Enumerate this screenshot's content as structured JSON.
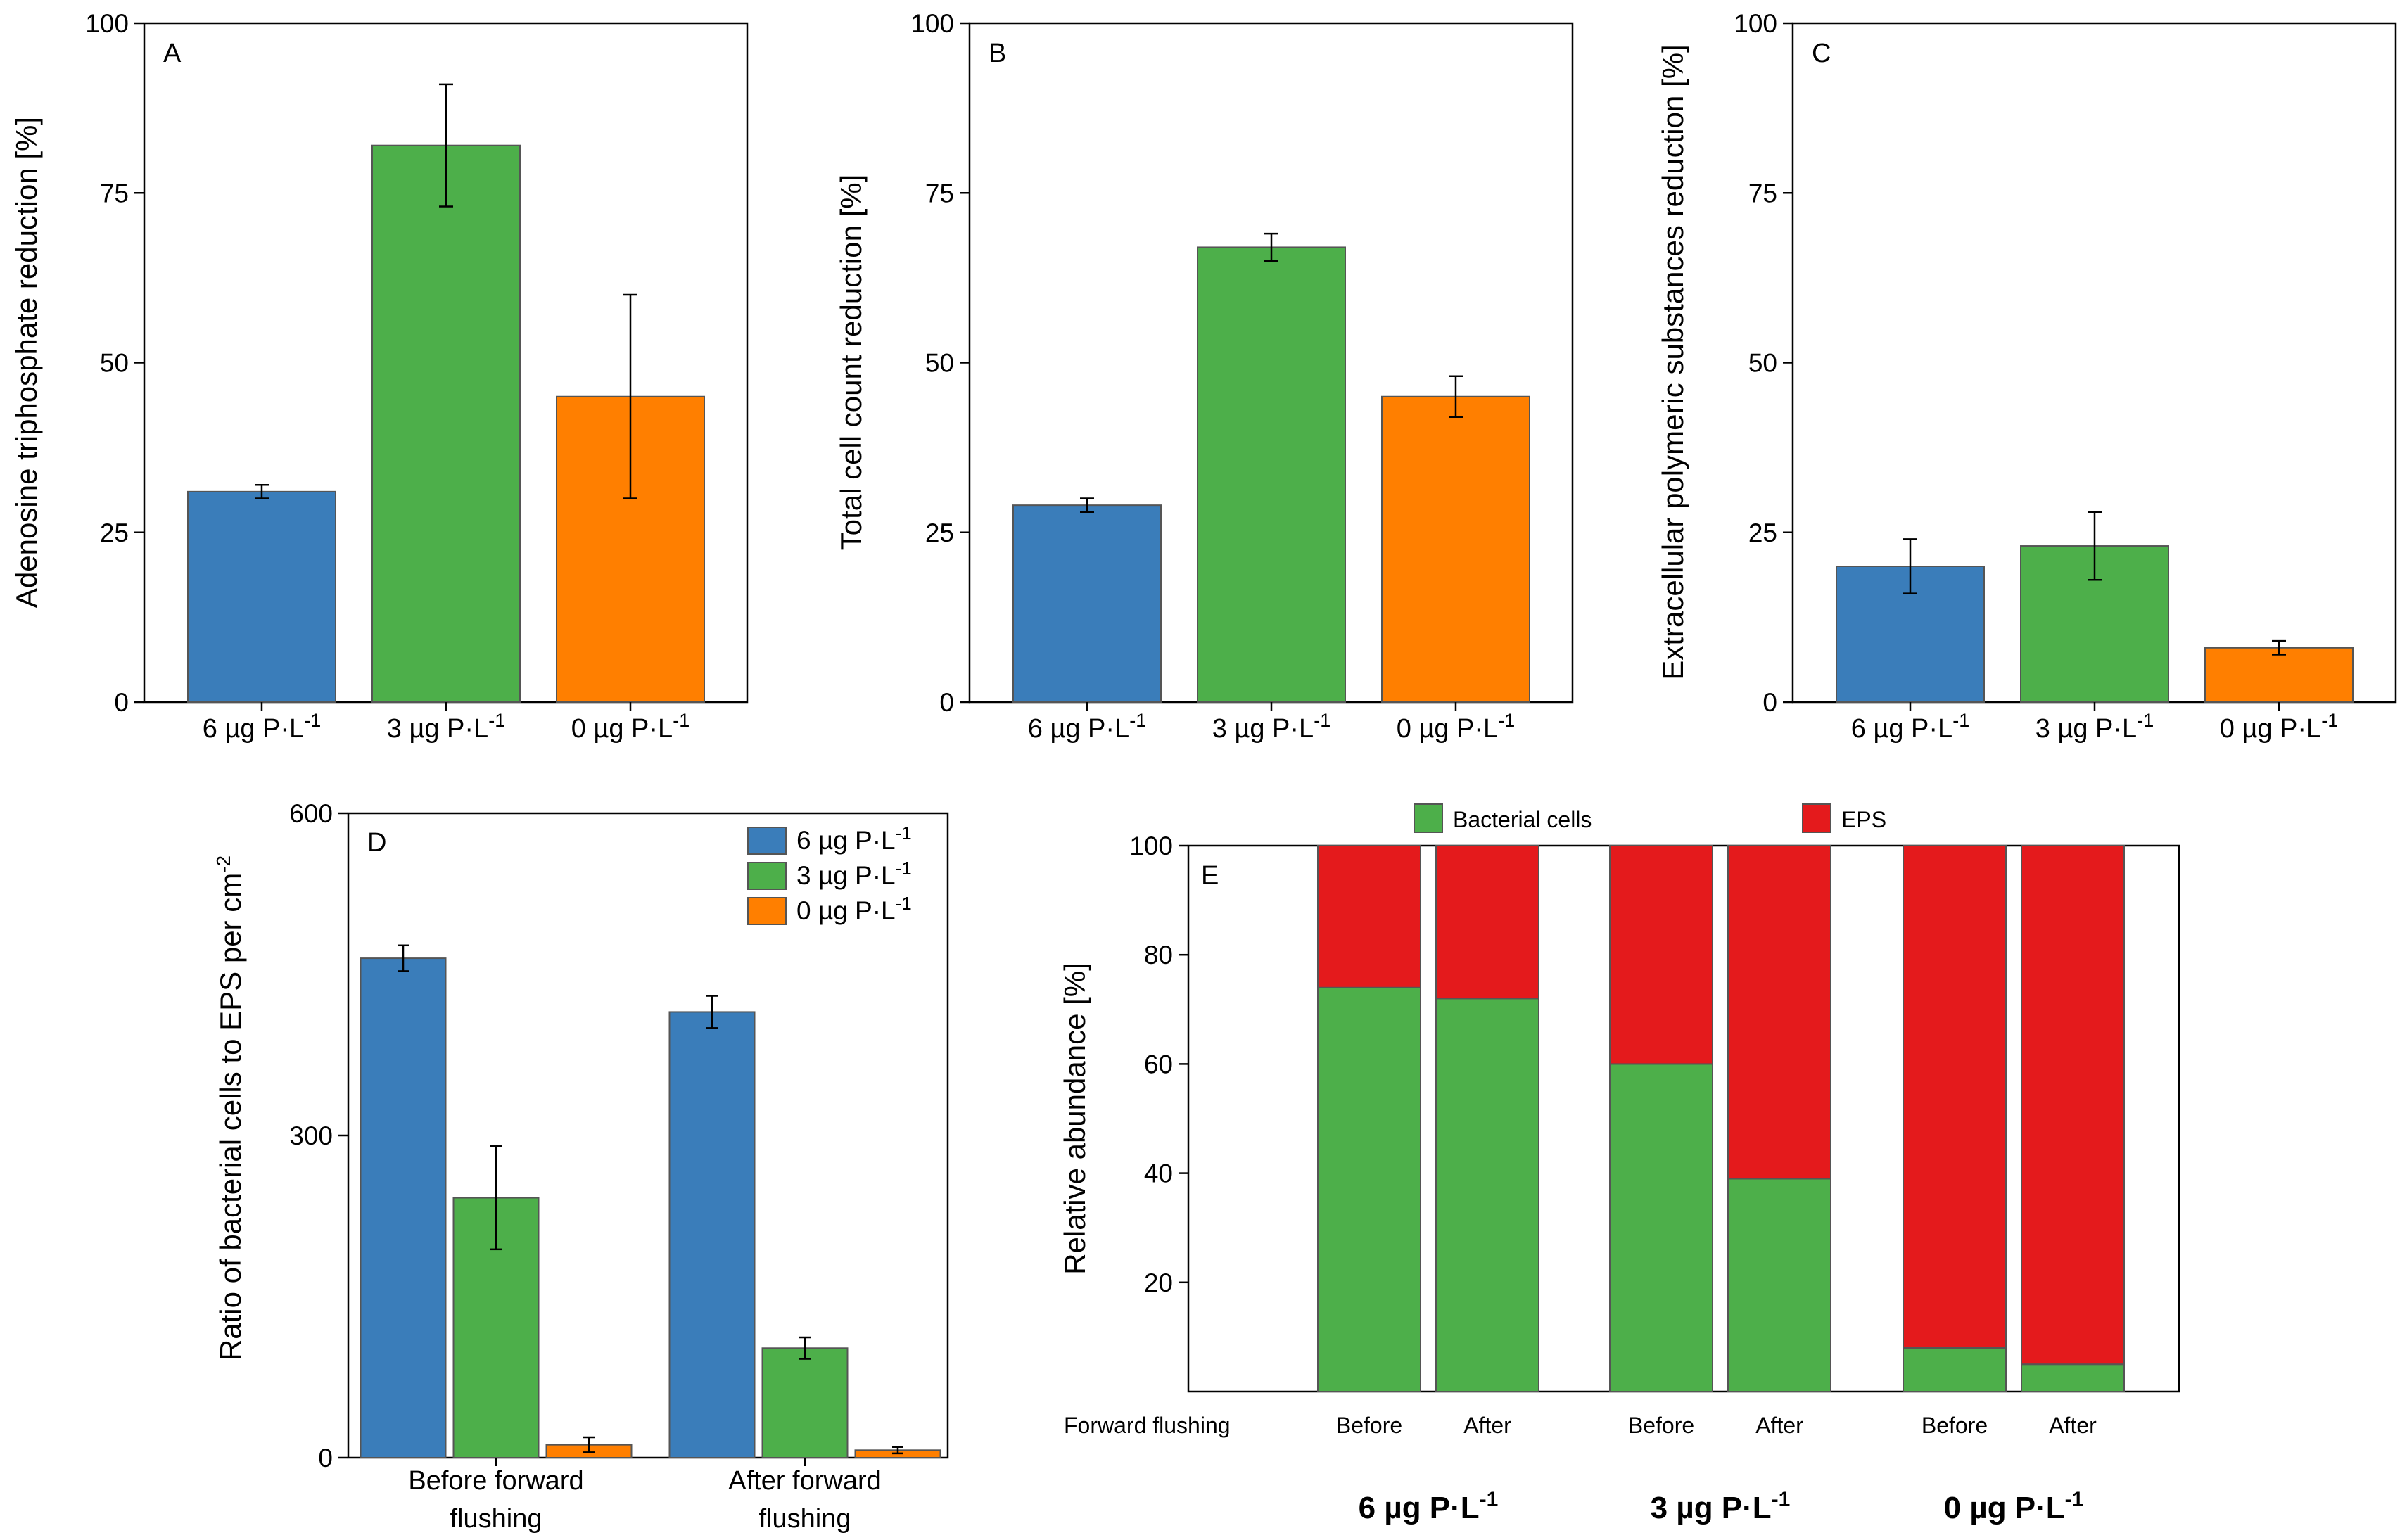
{
  "colors": {
    "blue": "#3a7dba",
    "green": "#4daf4a",
    "orange": "#ff7f00",
    "red": "#e41a1c",
    "bar_edge": "#555555"
  },
  "chart_data": [
    {
      "type": "bar",
      "panel": "A",
      "ylabel": "Adenosine triphosphate reduction [%]",
      "ylim": [
        0,
        100
      ],
      "yticks": [
        "0",
        "25",
        "50",
        "75",
        "100"
      ],
      "ytick_values": [
        0,
        25,
        50,
        75,
        100
      ],
      "categories": [
        {
          "base": "6 µg P·L",
          "sup": "-1"
        },
        {
          "base": "3 µg P·L",
          "sup": "-1"
        },
        {
          "base": "0 µg P·L",
          "sup": "-1"
        }
      ],
      "values": [
        31,
        82,
        45
      ],
      "errors": [
        1,
        9,
        15
      ],
      "bar_colors": [
        "blue",
        "green",
        "orange"
      ]
    },
    {
      "type": "bar",
      "panel": "B",
      "ylabel": "Total cell count reduction [%]",
      "ylim": [
        0,
        100
      ],
      "yticks": [
        "0",
        "25",
        "50",
        "75",
        "100"
      ],
      "ytick_values": [
        0,
        25,
        50,
        75,
        100
      ],
      "categories": [
        {
          "base": "6 µg P·L",
          "sup": "-1"
        },
        {
          "base": "3 µg P·L",
          "sup": "-1"
        },
        {
          "base": "0 µg P·L",
          "sup": "-1"
        }
      ],
      "values": [
        29,
        67,
        45
      ],
      "errors": [
        1,
        2,
        3
      ],
      "bar_colors": [
        "blue",
        "green",
        "orange"
      ]
    },
    {
      "type": "bar",
      "panel": "C",
      "ylabel": "Extracellular polymeric substances reduction [%]",
      "ylim": [
        0,
        100
      ],
      "yticks": [
        "0",
        "25",
        "50",
        "75",
        "100"
      ],
      "ytick_values": [
        0,
        25,
        50,
        75,
        100
      ],
      "categories": [
        {
          "base": "6 µg P·L",
          "sup": "-1"
        },
        {
          "base": "3 µg P·L",
          "sup": "-1"
        },
        {
          "base": "0 µg P·L",
          "sup": "-1"
        }
      ],
      "values": [
        20,
        23,
        8
      ],
      "errors": [
        4,
        5,
        1
      ],
      "bar_colors": [
        "blue",
        "green",
        "orange"
      ]
    },
    {
      "type": "bar",
      "panel": "D",
      "ylabel": {
        "base": "Ratio of bacterial cells to EPS per cm",
        "sup": "-2"
      },
      "ylim": [
        0,
        600
      ],
      "yticks": [
        "0",
        "300",
        "600"
      ],
      "ytick_values": [
        0,
        300,
        600
      ],
      "groups": [
        {
          "lines": [
            "Before forward",
            "flushing"
          ]
        },
        {
          "lines": [
            "After forward",
            "flushing"
          ]
        }
      ],
      "series": [
        {
          "name": {
            "base": "6 µg P·L",
            "sup": "-1"
          },
          "color": "blue",
          "values": [
            465,
            415
          ],
          "errors": [
            12,
            15
          ]
        },
        {
          "name": {
            "base": "3 µg P·L",
            "sup": "-1"
          },
          "color": "green",
          "values": [
            242,
            102
          ],
          "errors": [
            48,
            10
          ]
        },
        {
          "name": {
            "base": "0 µg P·L",
            "sup": "-1"
          },
          "color": "orange",
          "values": [
            12,
            7
          ],
          "errors": [
            7,
            3
          ]
        }
      ],
      "legend_position": "top-right"
    },
    {
      "type": "bar",
      "stacked": true,
      "panel": "E",
      "ylabel": "Relative abundance [%]",
      "ylim": [
        0,
        100
      ],
      "yticks": [
        "20",
        "40",
        "60",
        "80",
        "100"
      ],
      "ytick_values": [
        20,
        40,
        60,
        80,
        100
      ],
      "row_label": "Forward flushing",
      "groups": [
        {
          "name": {
            "base": "6 µg P·L",
            "sup": "-1"
          },
          "bars": [
            {
              "label": "Before",
              "bacterial": 74,
              "eps": 26
            },
            {
              "label": "After",
              "bacterial": 72,
              "eps": 28
            }
          ]
        },
        {
          "name": {
            "base": "3 µg P·L",
            "sup": "-1"
          },
          "bars": [
            {
              "label": "Before",
              "bacterial": 60,
              "eps": 40
            },
            {
              "label": "After",
              "bacterial": 39,
              "eps": 61
            }
          ]
        },
        {
          "name": {
            "base": "0 µg P·L",
            "sup": "-1"
          },
          "bars": [
            {
              "label": "Before",
              "bacterial": 8,
              "eps": 92
            },
            {
              "label": "After",
              "bacterial": 5,
              "eps": 95
            }
          ]
        }
      ],
      "legend": [
        {
          "name": "Bacterial cells",
          "color": "green"
        },
        {
          "name": "EPS",
          "color": "red"
        }
      ],
      "legend_position": "top"
    }
  ]
}
